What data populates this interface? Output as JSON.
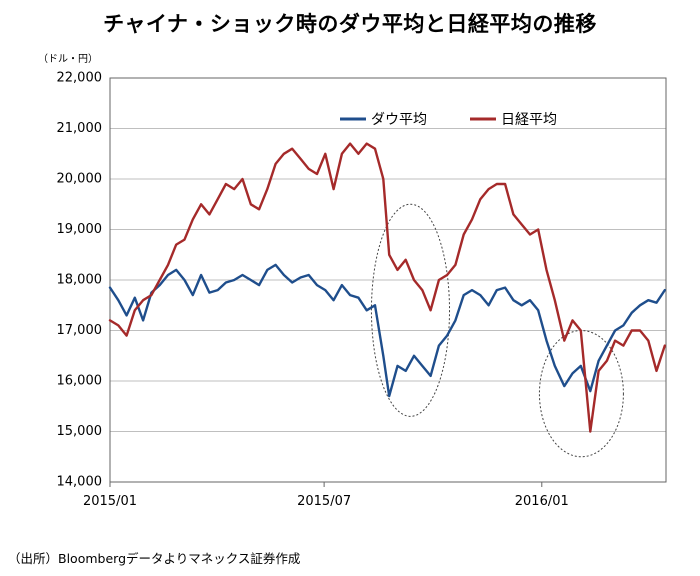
{
  "title": "チャイナ・ショック時のダウ平均と日経平均の推移",
  "unit_label": "（ドル・円）",
  "source": "（出所）Bloombergデータよりマネックス証券作成",
  "chart_data": {
    "type": "line",
    "title": "チャイナ・ショック時のダウ平均と日経平均の推移",
    "ylabel": "（ドル・円）",
    "xlabel": "",
    "ylim": [
      14000,
      22000
    ],
    "yticks": [
      14000,
      15000,
      16000,
      17000,
      18000,
      19000,
      20000,
      21000,
      22000
    ],
    "ytick_labels": [
      "14,000",
      "15,000",
      "16,000",
      "17,000",
      "18,000",
      "19,000",
      "20,000",
      "21,000",
      "22,000"
    ],
    "xlim": [
      "2015-01-01",
      "2016-04-15"
    ],
    "xticks": [
      "2015-01-01",
      "2015-07-01",
      "2016-01-01"
    ],
    "xtick_labels": [
      "2015/01",
      "2015/07",
      "2016/01"
    ],
    "grid": "horizontal",
    "legend": "top-right",
    "annotations": [
      "ellipse around 2015-08 to 2015-10",
      "ellipse around 2016-01 to 2016-03"
    ],
    "series": [
      {
        "name": "ダウ平均",
        "color": "#1f4e8c",
        "x": [
          "2015-01-01",
          "2015-01-08",
          "2015-01-15",
          "2015-01-22",
          "2015-01-29",
          "2015-02-05",
          "2015-02-12",
          "2015-02-19",
          "2015-02-26",
          "2015-03-05",
          "2015-03-12",
          "2015-03-19",
          "2015-03-26",
          "2015-04-02",
          "2015-04-09",
          "2015-04-16",
          "2015-04-23",
          "2015-04-30",
          "2015-05-07",
          "2015-05-14",
          "2015-05-21",
          "2015-05-28",
          "2015-06-04",
          "2015-06-11",
          "2015-06-18",
          "2015-06-25",
          "2015-07-02",
          "2015-07-09",
          "2015-07-16",
          "2015-07-23",
          "2015-07-30",
          "2015-08-06",
          "2015-08-13",
          "2015-08-20",
          "2015-08-25",
          "2015-09-01",
          "2015-09-08",
          "2015-09-15",
          "2015-09-22",
          "2015-09-29",
          "2015-10-06",
          "2015-10-13",
          "2015-10-20",
          "2015-10-27",
          "2015-11-03",
          "2015-11-10",
          "2015-11-17",
          "2015-11-24",
          "2015-12-01",
          "2015-12-08",
          "2015-12-15",
          "2015-12-22",
          "2015-12-29",
          "2016-01-05",
          "2016-01-12",
          "2016-01-20",
          "2016-01-27",
          "2016-02-03",
          "2016-02-11",
          "2016-02-18",
          "2016-02-25",
          "2016-03-03",
          "2016-03-10",
          "2016-03-17",
          "2016-03-24",
          "2016-03-31",
          "2016-04-07",
          "2016-04-14"
        ],
        "values": [
          17850,
          17600,
          17300,
          17650,
          17200,
          17750,
          17900,
          18100,
          18200,
          18000,
          17700,
          18100,
          17750,
          17800,
          17950,
          18000,
          18100,
          18000,
          17900,
          18200,
          18300,
          18100,
          17950,
          18050,
          18100,
          17900,
          17800,
          17600,
          17900,
          17700,
          17650,
          17400,
          17500,
          16500,
          15700,
          16300,
          16200,
          16500,
          16300,
          16100,
          16700,
          16900,
          17200,
          17700,
          17800,
          17700,
          17500,
          17800,
          17850,
          17600,
          17500,
          17600,
          17400,
          16800,
          16300,
          15900,
          16150,
          16300,
          15800,
          16400,
          16700,
          17000,
          17100,
          17350,
          17500,
          17600,
          17550,
          17800
        ]
      },
      {
        "name": "日経平均",
        "color": "#a52a2a",
        "x": [
          "2015-01-01",
          "2015-01-08",
          "2015-01-15",
          "2015-01-22",
          "2015-01-29",
          "2015-02-05",
          "2015-02-12",
          "2015-02-19",
          "2015-02-26",
          "2015-03-05",
          "2015-03-12",
          "2015-03-19",
          "2015-03-26",
          "2015-04-02",
          "2015-04-09",
          "2015-04-16",
          "2015-04-23",
          "2015-04-30",
          "2015-05-07",
          "2015-05-14",
          "2015-05-21",
          "2015-05-28",
          "2015-06-04",
          "2015-06-11",
          "2015-06-18",
          "2015-06-25",
          "2015-07-02",
          "2015-07-09",
          "2015-07-16",
          "2015-07-23",
          "2015-07-30",
          "2015-08-06",
          "2015-08-13",
          "2015-08-20",
          "2015-08-25",
          "2015-09-01",
          "2015-09-08",
          "2015-09-15",
          "2015-09-22",
          "2015-09-29",
          "2015-10-06",
          "2015-10-13",
          "2015-10-20",
          "2015-10-27",
          "2015-11-03",
          "2015-11-10",
          "2015-11-17",
          "2015-11-24",
          "2015-12-01",
          "2015-12-08",
          "2015-12-15",
          "2015-12-22",
          "2015-12-29",
          "2016-01-05",
          "2016-01-12",
          "2016-01-20",
          "2016-01-27",
          "2016-02-03",
          "2016-02-11",
          "2016-02-18",
          "2016-02-25",
          "2016-03-03",
          "2016-03-10",
          "2016-03-17",
          "2016-03-24",
          "2016-03-31",
          "2016-04-07",
          "2016-04-14"
        ],
        "values": [
          17200,
          17100,
          16900,
          17400,
          17600,
          17700,
          18000,
          18300,
          18700,
          18800,
          19200,
          19500,
          19300,
          19600,
          19900,
          19800,
          20000,
          19500,
          19400,
          19800,
          20300,
          20500,
          20600,
          20400,
          20200,
          20100,
          20500,
          19800,
          20500,
          20700,
          20500,
          20700,
          20600,
          20000,
          18500,
          18200,
          18400,
          18000,
          17800,
          17400,
          18000,
          18100,
          18300,
          18900,
          19200,
          19600,
          19800,
          19900,
          19900,
          19300,
          19100,
          18900,
          19000,
          18200,
          17600,
          16800,
          17200,
          17000,
          15000,
          16200,
          16400,
          16800,
          16700,
          17000,
          17000,
          16800,
          16200,
          16700
        ]
      }
    ]
  }
}
